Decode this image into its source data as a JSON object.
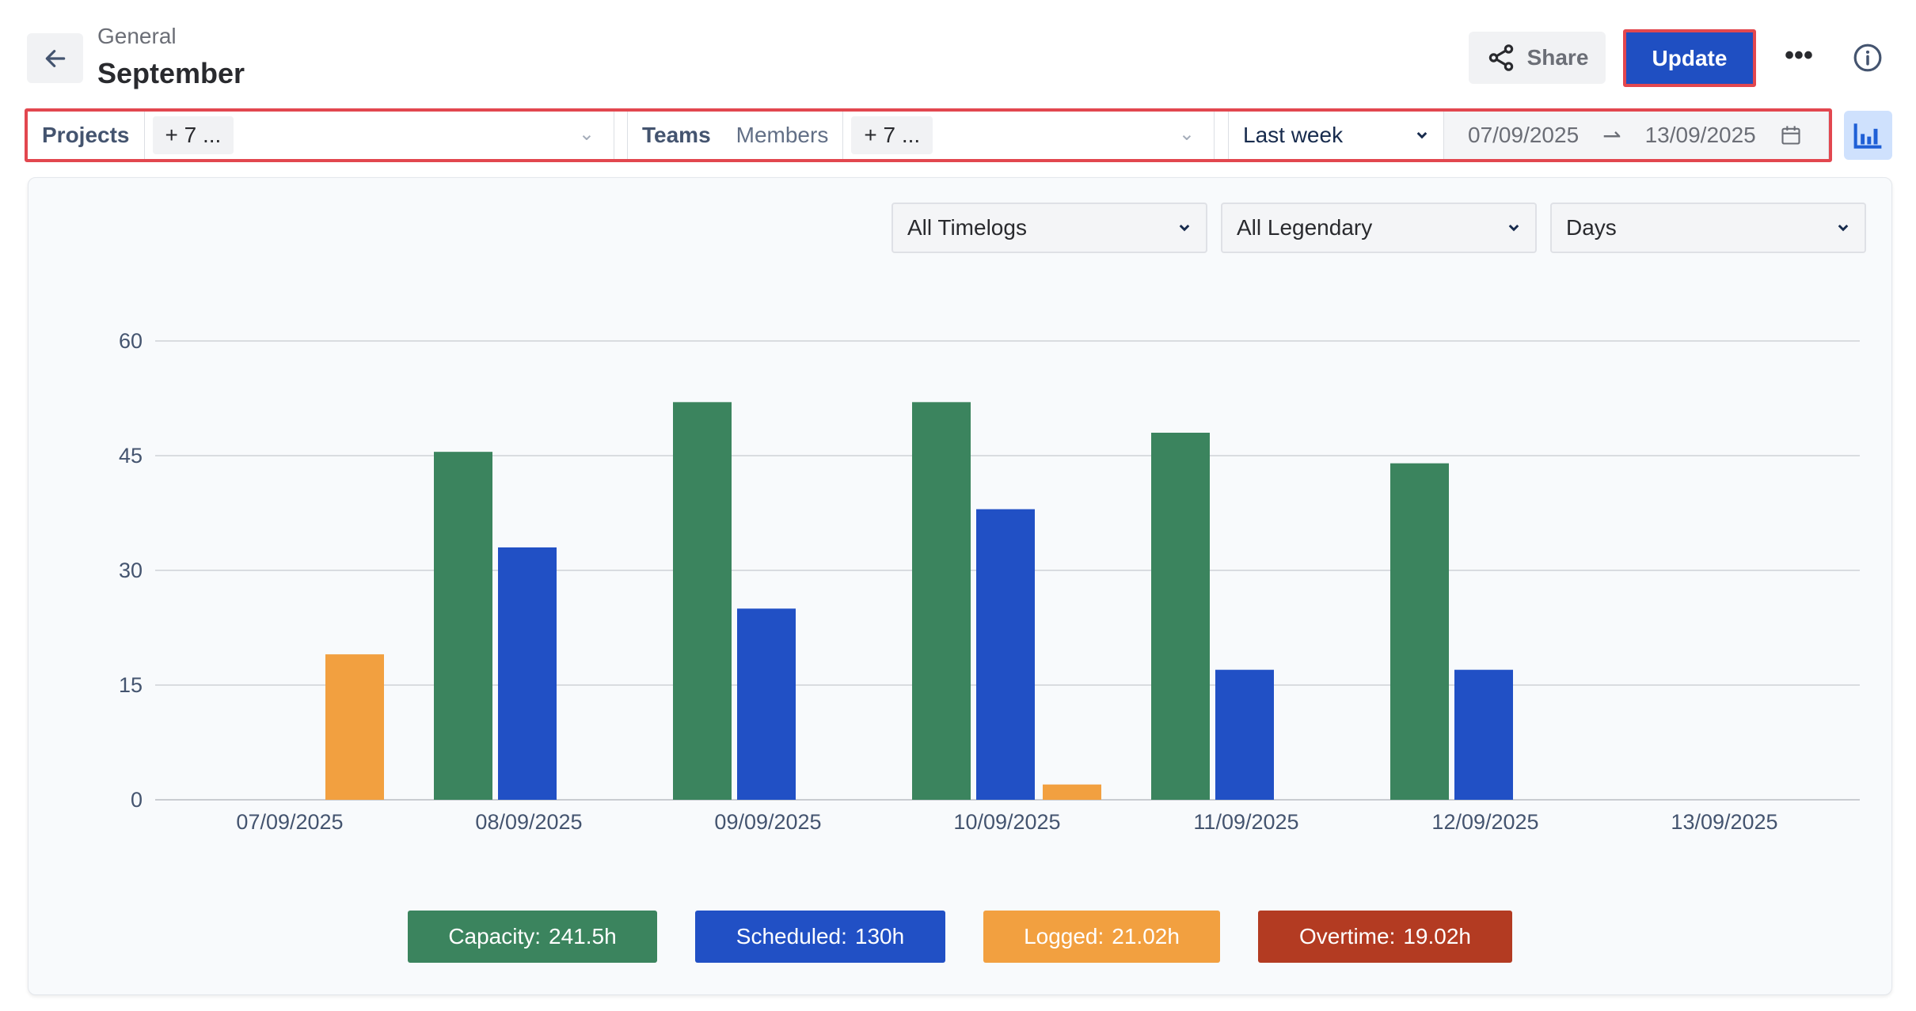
{
  "header": {
    "breadcrumb": "General",
    "title": "September",
    "share_label": "Share",
    "update_label": "Update"
  },
  "filters": {
    "projects_label": "Projects",
    "projects_value": "+ 7 ...",
    "teams_label": "Teams",
    "members_label": "Members",
    "teams_value": "+ 7 ...",
    "period": "Last week",
    "date_from": "07/09/2025",
    "date_to": "13/09/2025"
  },
  "dropdowns": [
    "All Timelogs",
    "All Legendary",
    "Days"
  ],
  "colors": {
    "capacity": "#3b845e",
    "scheduled": "#2150c5",
    "logged": "#f2a040",
    "overtime": "#b33b22",
    "accent": "#1f4fc2"
  },
  "legend": [
    {
      "label": "Capacity:",
      "value": "241.5h"
    },
    {
      "label": "Scheduled:",
      "value": "130h"
    },
    {
      "label": "Logged:",
      "value": "21.02h"
    },
    {
      "label": "Overtime:",
      "value": "19.02h"
    }
  ],
  "chart_data": {
    "type": "bar",
    "categories": [
      "07/09/2025",
      "08/09/2025",
      "09/09/2025",
      "10/09/2025",
      "11/09/2025",
      "12/09/2025",
      "13/09/2025"
    ],
    "series": [
      {
        "name": "Capacity",
        "values": [
          0,
          45.5,
          52,
          52,
          48,
          44,
          0
        ]
      },
      {
        "name": "Scheduled",
        "values": [
          0,
          33,
          25,
          38,
          17,
          17,
          0
        ]
      },
      {
        "name": "Logged",
        "values": [
          19.02,
          0,
          0,
          2,
          0,
          0,
          0
        ]
      }
    ],
    "yticks": [
      0,
      15,
      30,
      45,
      60
    ],
    "ylim": [
      0,
      60
    ],
    "grid": true
  }
}
